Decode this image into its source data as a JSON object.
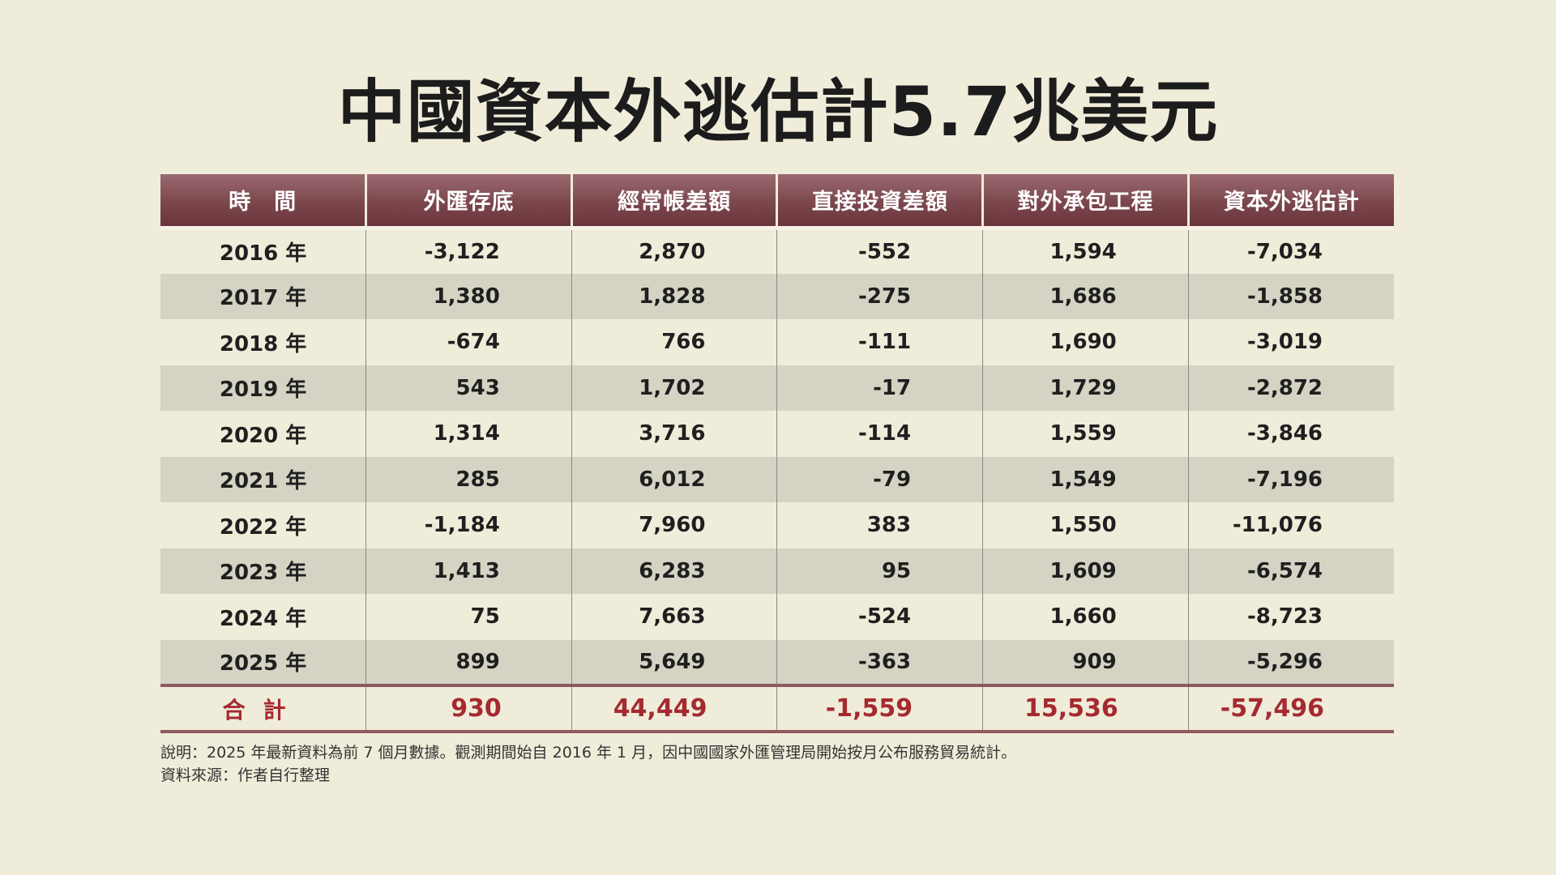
{
  "chart_data": {
    "type": "table",
    "title": "中國資本外逃估計5.7兆美元",
    "columns": [
      "時　間",
      "外匯存底",
      "經常帳差額",
      "直接投資差額",
      "對外承包工程",
      "資本外逃估計"
    ],
    "rows": [
      [
        "2016 年",
        "-3,122",
        "2,870",
        "-552",
        "1,594",
        "-7,034"
      ],
      [
        "2017 年",
        "1,380",
        "1,828",
        "-275",
        "1,686",
        "-1,858"
      ],
      [
        "2018 年",
        "-674",
        "766",
        "-111",
        "1,690",
        "-3,019"
      ],
      [
        "2019 年",
        "543",
        "1,702",
        "-17",
        "1,729",
        "-2,872"
      ],
      [
        "2020 年",
        "1,314",
        "3,716",
        "-114",
        "1,559",
        "-3,846"
      ],
      [
        "2021 年",
        "285",
        "6,012",
        "-79",
        "1,549",
        "-7,196"
      ],
      [
        "2022 年",
        "-1,184",
        "7,960",
        "383",
        "1,550",
        "-11,076"
      ],
      [
        "2023 年",
        "1,413",
        "6,283",
        "95",
        "1,609",
        "-6,574"
      ],
      [
        "2024 年",
        "75",
        "7,663",
        "-524",
        "1,660",
        "-8,723"
      ],
      [
        "2025 年",
        "899",
        "5,649",
        "-363",
        "909",
        "-5,296"
      ]
    ],
    "total": [
      "合計",
      "930",
      "44,449",
      "-1,559",
      "15,536",
      "-57,496"
    ]
  },
  "notes": {
    "line1": "說明：2025 年最新資料為前 7 個月數據。觀測期間始自 2016 年 1 月，因中國國家外匯管理局開始按月公布服務貿易統計。",
    "line2": "資料來源：作者自行整理"
  },
  "colors": {
    "background": "#f0ecda",
    "header": "#7b474d",
    "total_text": "#a52a30",
    "alt_row": "#d5d3c3"
  }
}
